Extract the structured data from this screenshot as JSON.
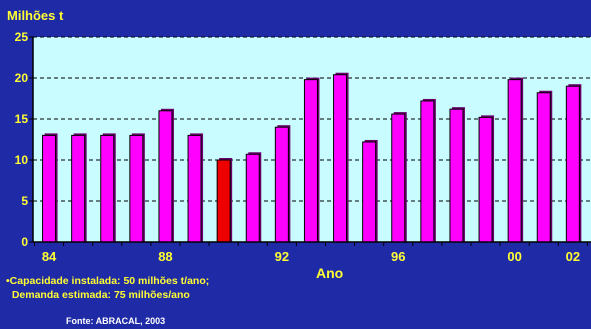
{
  "chart_data": {
    "type": "bar",
    "unit_label": "Milhões t",
    "xlabel": "Ano",
    "x_tick_labels": [
      "84",
      "88",
      "92",
      "96",
      "00",
      "02"
    ],
    "y_ticks": [
      0,
      5,
      10,
      15,
      20,
      25
    ],
    "ylim": [
      0,
      25
    ],
    "grid": "horizontal dashed",
    "values": [
      13,
      13,
      13,
      13,
      16,
      13,
      10,
      10.7,
      14,
      19.8,
      20.4,
      12.2,
      15.6,
      17.2,
      16.2,
      15.2,
      19.8,
      18.2,
      19
    ],
    "highlight_index": 6,
    "colors": {
      "background": "#1f2aa6",
      "plot_area": "#c8fcff",
      "bar": "#ff00ff",
      "bar_highlight": "#ee0000",
      "text": "#ffff33"
    }
  },
  "notes": [
    "•Capacidade instalada: 50 milhões t/ano;",
    "  Demanda estimada: 75 milhões/ano"
  ],
  "source": "Fonte: ABRACAL, 2003"
}
